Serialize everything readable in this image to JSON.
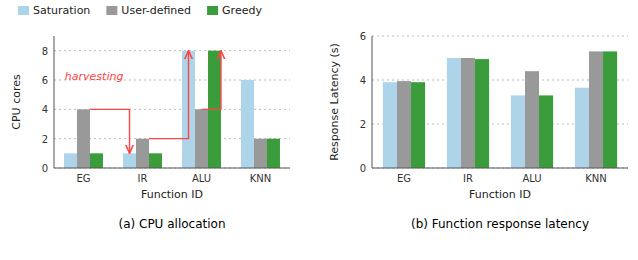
{
  "chart_data": [
    {
      "type": "bar",
      "title": "(a) CPU allocation",
      "x_label": "Function ID",
      "y_label": "CPU cores",
      "categories": [
        "EG",
        "IR",
        "ALU",
        "KNN"
      ],
      "series": [
        {
          "name": "Saturation",
          "color": "#aed4ea",
          "values": [
            1,
            1,
            8,
            6
          ]
        },
        {
          "name": "User-defined",
          "color": "#999999",
          "values": [
            4,
            2,
            4,
            2
          ]
        },
        {
          "name": "Greedy",
          "color": "#3a9c3a",
          "values": [
            1,
            1,
            8,
            2
          ]
        }
      ],
      "ylim": [
        0,
        9
      ],
      "yticks": [
        0,
        2,
        4,
        6,
        8
      ],
      "grid": true,
      "legend": "top left",
      "annotations": [
        {
          "text": "harvesting",
          "color": "#ff4444"
        }
      ]
    },
    {
      "type": "bar",
      "title": "(b) Function response latency",
      "x_label": "Function ID",
      "y_label": "Response Latency (s)",
      "categories": [
        "EG",
        "IR",
        "ALU",
        "KNN"
      ],
      "series": [
        {
          "name": "Saturation",
          "color": "#aed4ea",
          "values": [
            3.9,
            5.0,
            3.3,
            3.65
          ]
        },
        {
          "name": "User-defined",
          "color": "#999999",
          "values": [
            3.95,
            5.0,
            4.4,
            5.3
          ]
        },
        {
          "name": "Greedy",
          "color": "#3a9c3a",
          "values": [
            3.9,
            4.95,
            3.3,
            5.3
          ]
        }
      ],
      "ylim": [
        0,
        6
      ],
      "yticks": [
        0,
        2,
        4,
        6
      ],
      "grid": true
    }
  ]
}
